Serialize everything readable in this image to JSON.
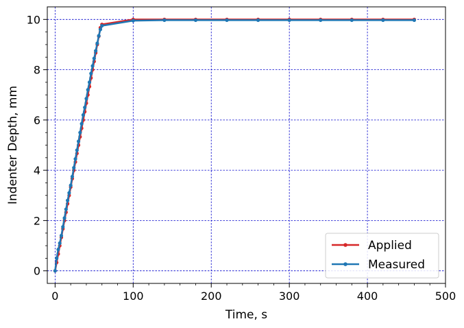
{
  "chart_data": {
    "type": "line",
    "xlabel": "Time, s",
    "ylabel": "Indenter Depth, mm",
    "xlim": [
      -10,
      500
    ],
    "ylim": [
      -0.5,
      10.5
    ],
    "xticks": [
      0,
      100,
      200,
      300,
      400,
      500
    ],
    "yticks": [
      0,
      2,
      4,
      6,
      8,
      10
    ],
    "grid": true,
    "legend_position": "lower-right",
    "series": [
      {
        "name": "Applied",
        "color": "#d62728",
        "x": [
          0,
          2,
          4,
          6,
          8,
          10,
          12,
          14,
          16,
          18,
          20,
          22,
          24,
          26,
          28,
          30,
          32,
          34,
          36,
          38,
          40,
          42,
          44,
          46,
          48,
          50,
          52,
          54,
          56,
          58,
          60,
          100,
          140,
          180,
          220,
          260,
          300,
          340,
          380,
          420,
          460
        ],
        "y": [
          0,
          0.33,
          0.67,
          1.0,
          1.33,
          1.67,
          2.0,
          2.33,
          2.67,
          3.0,
          3.33,
          3.67,
          4.0,
          4.33,
          4.67,
          5.0,
          5.33,
          5.67,
          6.0,
          6.33,
          6.67,
          7.0,
          7.33,
          7.67,
          8.0,
          8.33,
          8.67,
          9.0,
          9.33,
          9.67,
          9.8,
          10.0,
          10.0,
          10.0,
          10.0,
          10.0,
          10.0,
          10.0,
          10.0,
          10.0,
          10.0
        ]
      },
      {
        "name": "Measured",
        "color": "#1f77b4",
        "x": [
          0,
          2,
          4,
          6,
          8,
          10,
          12,
          14,
          16,
          18,
          20,
          22,
          24,
          26,
          28,
          30,
          32,
          34,
          36,
          38,
          40,
          42,
          44,
          46,
          48,
          50,
          52,
          54,
          56,
          58,
          60,
          100,
          140,
          180,
          220,
          260,
          300,
          340,
          380,
          420,
          460
        ],
        "y": [
          0,
          0.5,
          0.85,
          1.1,
          1.4,
          1.75,
          2.1,
          2.45,
          2.8,
          3.1,
          3.4,
          3.75,
          4.1,
          4.45,
          4.8,
          5.15,
          5.5,
          5.85,
          6.2,
          6.5,
          6.85,
          7.2,
          7.5,
          7.85,
          8.15,
          8.45,
          8.75,
          9.05,
          9.35,
          9.6,
          9.75,
          9.95,
          9.97,
          9.97,
          9.97,
          9.97,
          9.97,
          9.97,
          9.97,
          9.97,
          9.97
        ]
      }
    ]
  }
}
